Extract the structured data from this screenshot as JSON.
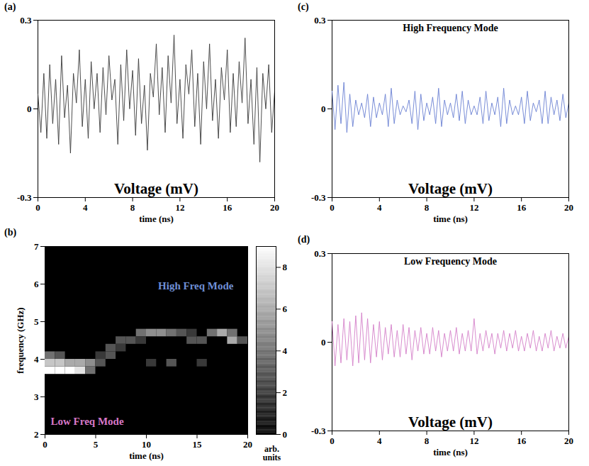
{
  "chart_data": [
    {
      "panel_label": "(a)",
      "type": "line",
      "x_label": "time (ns)",
      "annotation": "Voltage (mV)",
      "x": [
        0,
        0.25,
        0.5,
        0.75,
        1,
        1.25,
        1.5,
        1.75,
        2,
        2.25,
        2.5,
        2.75,
        3,
        3.25,
        3.5,
        3.75,
        4,
        4.25,
        4.5,
        4.75,
        5,
        5.25,
        5.5,
        5.75,
        6,
        6.25,
        6.5,
        6.75,
        7,
        7.25,
        7.5,
        7.75,
        8,
        8.25,
        8.5,
        8.75,
        9,
        9.25,
        9.5,
        9.75,
        10,
        10.25,
        10.5,
        10.75,
        11,
        11.25,
        11.5,
        11.75,
        12,
        12.25,
        12.5,
        12.75,
        13,
        13.25,
        13.5,
        13.75,
        14,
        14.25,
        14.5,
        14.75,
        15,
        15.25,
        15.5,
        15.75,
        16,
        16.25,
        16.5,
        16.75,
        17,
        17.25,
        17.5,
        17.75,
        18,
        18.25,
        18.5,
        18.75,
        19,
        19.25,
        19.5,
        19.75,
        20
      ],
      "series": [
        {
          "color": "#3a3a3a",
          "values": [
            0.05,
            -0.08,
            0.12,
            -0.1,
            0.15,
            -0.05,
            0.1,
            -0.12,
            0.18,
            -0.03,
            0.08,
            -0.15,
            0.12,
            0.02,
            0.2,
            -0.06,
            0.1,
            -0.1,
            0.16,
            0.0,
            0.12,
            -0.08,
            0.14,
            -0.02,
            0.18,
            0.03,
            0.1,
            -0.12,
            0.15,
            -0.04,
            0.2,
            0.0,
            0.13,
            -0.09,
            0.17,
            -0.05,
            0.08,
            -0.14,
            0.12,
            0.04,
            0.22,
            -0.02,
            0.14,
            -0.08,
            0.18,
            0.02,
            0.25,
            -0.05,
            0.1,
            -0.1,
            0.15,
            0.05,
            0.2,
            -0.06,
            0.12,
            -0.12,
            0.16,
            0.0,
            0.22,
            -0.04,
            0.1,
            -0.1,
            0.14,
            0.03,
            0.2,
            -0.08,
            0.12,
            -0.06,
            0.16,
            0.02,
            0.24,
            -0.05,
            0.1,
            -0.12,
            0.14,
            -0.18,
            0.12,
            0.0,
            0.15,
            -0.08,
            0.06
          ]
        }
      ],
      "xlim": [
        0,
        20
      ],
      "xticks": [
        0,
        4,
        8,
        12,
        16,
        20
      ],
      "ylim": [
        -0.3,
        0.3
      ],
      "yticks": [
        -0.3,
        0,
        0.3
      ]
    },
    {
      "panel_label": "(b)",
      "type": "heatmap",
      "x_label": "time (ns)",
      "y_label": "frequency (GHz)",
      "xlim": [
        0,
        20
      ],
      "xticks": [
        0,
        5,
        10,
        15,
        20
      ],
      "ylim": [
        2,
        7
      ],
      "yticks": [
        2,
        3,
        4,
        5,
        6,
        7
      ],
      "cells": [
        [
          0,
          1,
          3.6,
          3.8,
          9
        ],
        [
          0,
          1,
          3.8,
          4.0,
          7
        ],
        [
          0,
          1,
          4.0,
          4.2,
          4
        ],
        [
          1,
          2,
          3.6,
          3.8,
          9
        ],
        [
          1,
          2,
          3.8,
          4.0,
          7
        ],
        [
          1,
          2,
          4.0,
          4.2,
          3
        ],
        [
          2,
          3,
          3.6,
          3.8,
          9
        ],
        [
          2,
          3,
          3.8,
          4.0,
          6
        ],
        [
          3,
          4,
          3.6,
          3.8,
          8
        ],
        [
          3,
          4,
          3.8,
          4.0,
          6
        ],
        [
          4,
          5,
          3.8,
          4.0,
          5
        ],
        [
          4,
          5,
          3.6,
          3.8,
          4
        ],
        [
          5,
          6,
          3.8,
          4.0,
          3
        ],
        [
          5,
          6,
          4.0,
          4.2,
          2
        ],
        [
          6,
          7,
          4.2,
          4.4,
          3
        ],
        [
          6,
          7,
          4.0,
          4.2,
          3
        ],
        [
          7,
          8,
          4.4,
          4.6,
          3
        ],
        [
          7,
          8,
          4.2,
          4.4,
          2
        ],
        [
          8,
          9,
          4.4,
          4.6,
          3
        ],
        [
          9,
          10,
          4.6,
          4.8,
          4
        ],
        [
          9,
          10,
          4.4,
          4.6,
          2
        ],
        [
          10,
          11,
          4.6,
          4.8,
          5
        ],
        [
          10,
          11,
          3.8,
          4.0,
          2
        ],
        [
          11,
          12,
          4.6,
          4.8,
          5
        ],
        [
          12,
          13,
          4.6,
          4.8,
          4
        ],
        [
          12,
          13,
          3.8,
          4.0,
          3
        ],
        [
          13,
          14,
          4.6,
          4.8,
          3
        ],
        [
          14,
          15,
          4.4,
          4.6,
          3
        ],
        [
          14,
          15,
          4.6,
          4.8,
          2
        ],
        [
          15,
          16,
          4.4,
          4.6,
          3
        ],
        [
          15,
          16,
          3.8,
          4.0,
          2
        ],
        [
          16,
          17,
          4.6,
          4.8,
          4
        ],
        [
          17,
          18,
          4.6,
          4.8,
          6
        ],
        [
          18,
          19,
          4.4,
          4.6,
          6
        ],
        [
          18,
          19,
          4.6,
          4.8,
          4
        ],
        [
          19,
          20,
          4.4,
          4.6,
          3
        ]
      ],
      "colorbar": {
        "range": [
          0,
          9
        ],
        "ticks": [
          0,
          2,
          4,
          6,
          8
        ],
        "label": "arb. units",
        "colors": [
          "#000000",
          "#ffffff"
        ]
      },
      "annotations": [
        {
          "text": "High Freq Mode",
          "color": "#6f8fd6"
        },
        {
          "text": "Low Freq Mode",
          "color": "#d878c8"
        }
      ]
    },
    {
      "panel_label": "(c)",
      "type": "line",
      "title": "High Frequency Mode",
      "x_label": "time (ns)",
      "annotation": "Voltage (mV)",
      "x": [
        0,
        0.25,
        0.5,
        0.75,
        1,
        1.25,
        1.5,
        1.75,
        2,
        2.25,
        2.5,
        2.75,
        3,
        3.25,
        3.5,
        3.75,
        4,
        4.25,
        4.5,
        4.75,
        5,
        5.25,
        5.5,
        5.75,
        6,
        6.25,
        6.5,
        6.75,
        7,
        7.25,
        7.5,
        7.75,
        8,
        8.25,
        8.5,
        8.75,
        9,
        9.25,
        9.5,
        9.75,
        10,
        10.25,
        10.5,
        10.75,
        11,
        11.25,
        11.5,
        11.75,
        12,
        12.25,
        12.5,
        12.75,
        13,
        13.25,
        13.5,
        13.75,
        14,
        14.25,
        14.5,
        14.75,
        15,
        15.25,
        15.5,
        15.75,
        16,
        16.25,
        16.5,
        16.75,
        17,
        17.25,
        17.5,
        17.75,
        18,
        18.25,
        18.5,
        18.75,
        19,
        19.25,
        19.5,
        19.75,
        20
      ],
      "series": [
        {
          "color": "#6a80d2",
          "values": [
            0.06,
            -0.07,
            0.08,
            -0.05,
            0.09,
            -0.08,
            0.05,
            -0.06,
            0.03,
            -0.02,
            0.02,
            -0.03,
            0.05,
            -0.06,
            0.04,
            -0.03,
            0.02,
            -0.02,
            0.05,
            -0.06,
            0.07,
            -0.05,
            0.03,
            -0.02,
            0.01,
            -0.01,
            0.03,
            -0.05,
            0.06,
            -0.07,
            0.05,
            -0.04,
            0.02,
            -0.02,
            0.04,
            -0.05,
            0.07,
            -0.06,
            0.03,
            -0.02,
            0.02,
            -0.03,
            0.05,
            -0.04,
            0.06,
            -0.05,
            0.03,
            -0.02,
            0.01,
            -0.02,
            0.04,
            -0.05,
            0.06,
            -0.04,
            0.02,
            -0.02,
            0.04,
            -0.06,
            0.07,
            -0.05,
            0.03,
            -0.02,
            0.01,
            -0.02,
            0.04,
            -0.05,
            0.06,
            -0.04,
            0.02,
            -0.01,
            0.03,
            -0.05,
            0.06,
            -0.05,
            0.04,
            -0.02,
            0.03,
            -0.04,
            0.05,
            -0.03,
            0.02
          ]
        }
      ],
      "xlim": [
        0,
        20
      ],
      "xticks": [
        0,
        4,
        8,
        12,
        16,
        20
      ],
      "ylim": [
        -0.3,
        0.3
      ],
      "yticks": [
        -0.3,
        0,
        0.3
      ]
    },
    {
      "panel_label": "(d)",
      "type": "line",
      "title": "Low Frequency Mode",
      "x_label": "time (ns)",
      "annotation": "Voltage (mV)",
      "x": [
        0,
        0.25,
        0.5,
        0.75,
        1,
        1.25,
        1.5,
        1.75,
        2,
        2.25,
        2.5,
        2.75,
        3,
        3.25,
        3.5,
        3.75,
        4,
        4.25,
        4.5,
        4.75,
        5,
        5.25,
        5.5,
        5.75,
        6,
        6.25,
        6.5,
        6.75,
        7,
        7.25,
        7.5,
        7.75,
        8,
        8.25,
        8.5,
        8.75,
        9,
        9.25,
        9.5,
        9.75,
        10,
        10.25,
        10.5,
        10.75,
        11,
        11.25,
        11.5,
        11.75,
        12,
        12.25,
        12.5,
        12.75,
        13,
        13.25,
        13.5,
        13.75,
        14,
        14.25,
        14.5,
        14.75,
        15,
        15.25,
        15.5,
        15.75,
        16,
        16.25,
        16.5,
        16.75,
        17,
        17.25,
        17.5,
        17.75,
        18,
        18.25,
        18.5,
        18.75,
        19,
        19.25,
        19.5,
        19.75,
        20
      ],
      "series": [
        {
          "color": "#d47fc8",
          "values": [
            0.07,
            -0.08,
            0.06,
            -0.07,
            0.08,
            -0.06,
            0.07,
            -0.08,
            0.09,
            -0.07,
            0.1,
            -0.06,
            0.08,
            -0.07,
            0.06,
            -0.05,
            0.07,
            -0.06,
            0.05,
            -0.04,
            0.06,
            -0.05,
            0.04,
            -0.05,
            0.06,
            -0.04,
            0.05,
            -0.06,
            0.04,
            -0.03,
            0.05,
            -0.04,
            0.03,
            -0.04,
            0.05,
            -0.03,
            0.04,
            -0.05,
            0.03,
            -0.03,
            0.04,
            -0.03,
            0.05,
            -0.04,
            0.03,
            -0.03,
            0.04,
            -0.03,
            0.08,
            -0.04,
            0.03,
            -0.03,
            0.04,
            -0.02,
            0.03,
            -0.04,
            0.03,
            -0.02,
            0.04,
            -0.03,
            0.03,
            -0.02,
            0.04,
            -0.03,
            0.02,
            -0.03,
            0.03,
            -0.02,
            0.04,
            -0.03,
            0.02,
            -0.03,
            0.03,
            -0.02,
            0.04,
            -0.03,
            0.02,
            -0.02,
            0.03,
            -0.02,
            0.02
          ]
        }
      ],
      "xlim": [
        0,
        20
      ],
      "xticks": [
        0,
        4,
        8,
        12,
        16,
        20
      ],
      "ylim": [
        -0.3,
        0.3
      ],
      "yticks": [
        -0.3,
        0,
        0.3
      ]
    }
  ]
}
